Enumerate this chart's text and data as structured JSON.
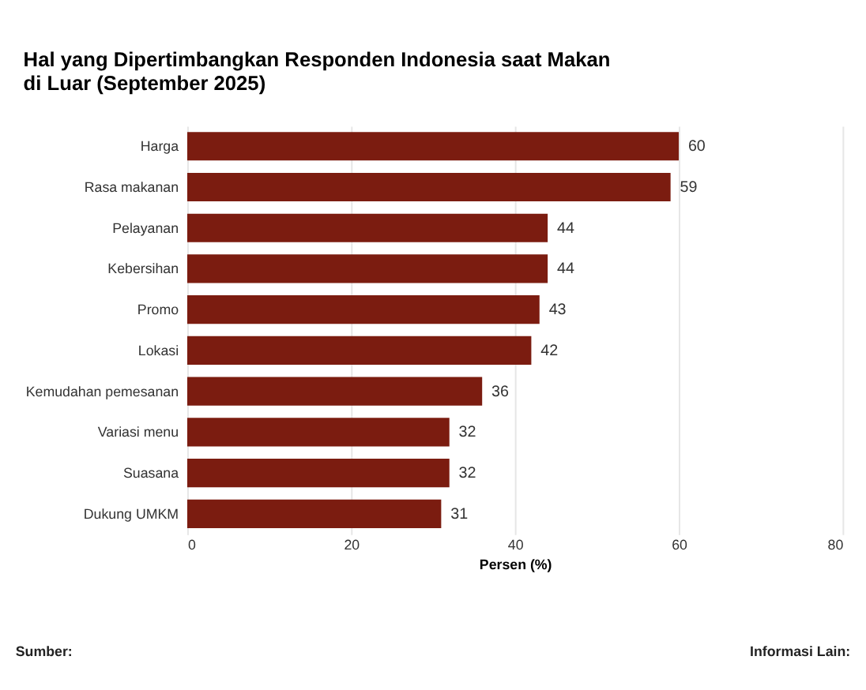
{
  "chart_data": {
    "type": "bar",
    "orientation": "horizontal",
    "title": "Hal yang Dipertimbangkan Responden Indonesia saat Makan di Luar (September 2025)",
    "xlabel": "Persen (%)",
    "categories": [
      "Harga",
      "Rasa makanan",
      "Pelayanan",
      "Kebersihan",
      "Promo",
      "Lokasi",
      "Kemudahan pemesanan",
      "Variasi menu",
      "Suasana",
      "Dukung UMKM"
    ],
    "values": [
      60,
      59,
      44,
      44,
      43,
      42,
      36,
      32,
      32,
      31
    ],
    "color": "#7b1c10",
    "xlim": [
      0,
      80
    ],
    "xticks": [
      0,
      20,
      40,
      60,
      80
    ],
    "grid": "x",
    "data_labels": true,
    "annotations": [
      "Sumber:",
      "Informasi Lain:"
    ]
  }
}
